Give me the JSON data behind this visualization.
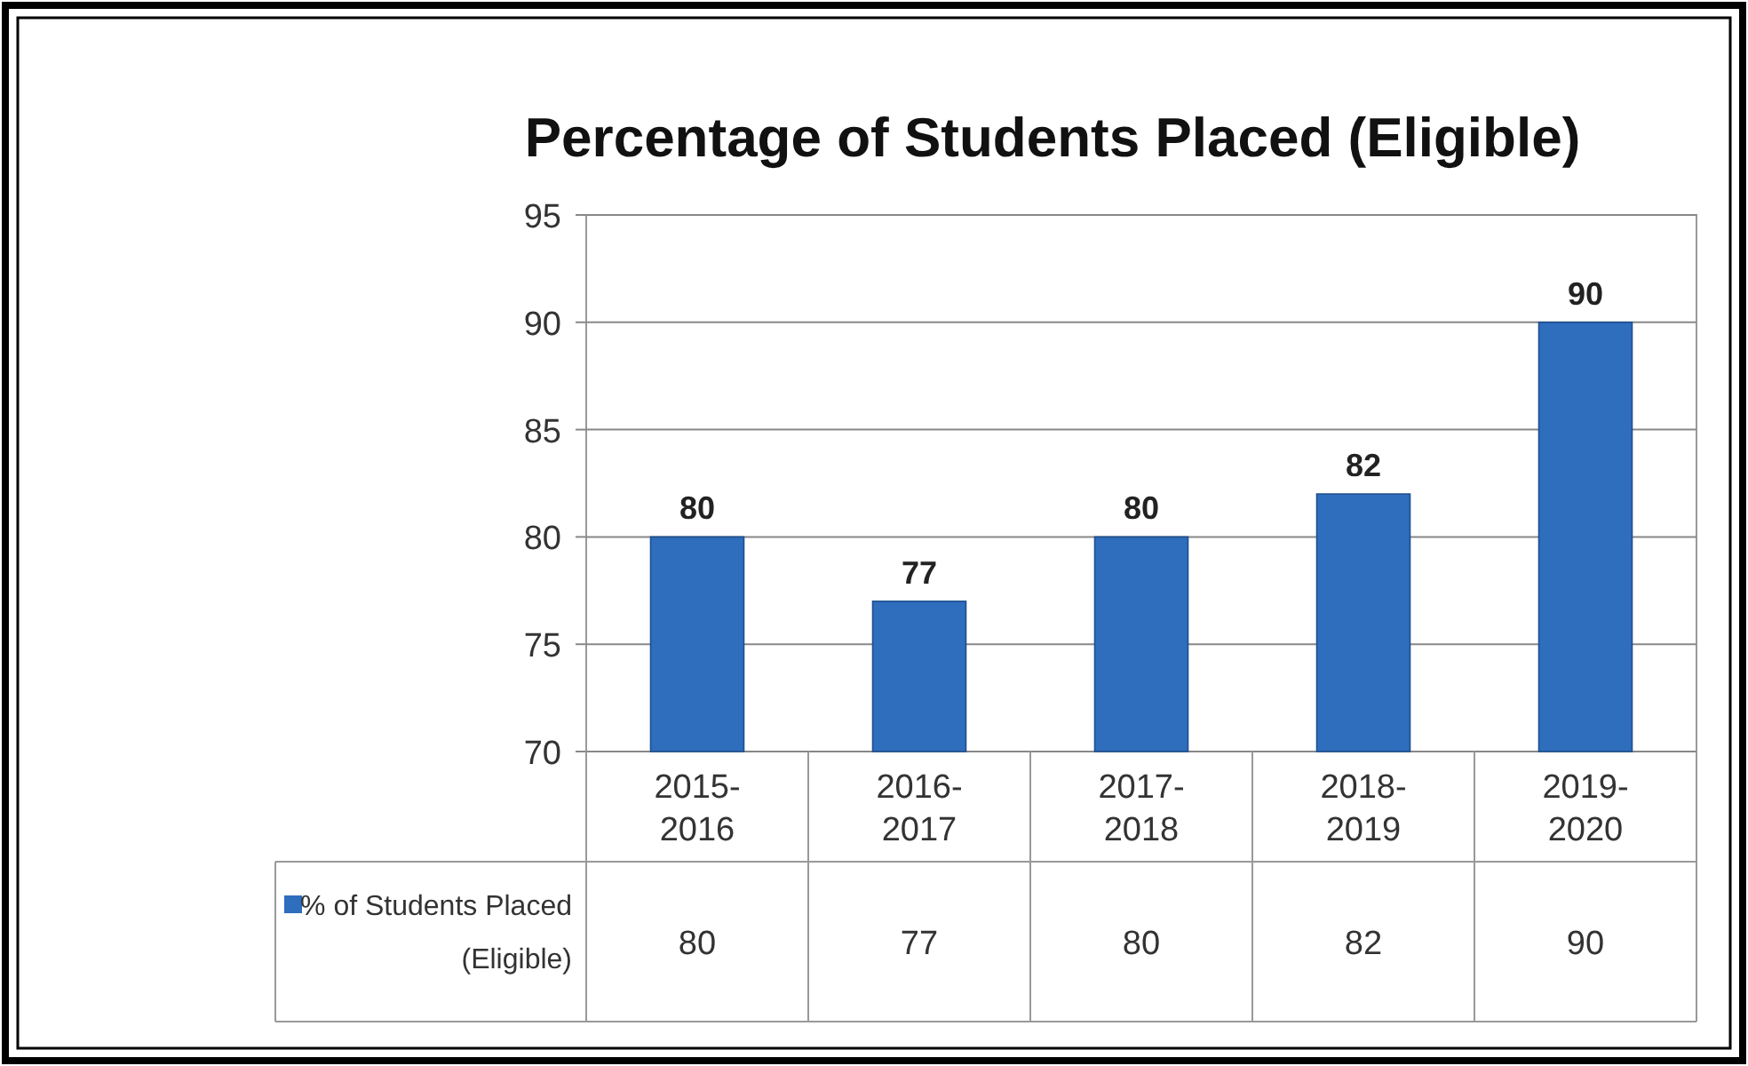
{
  "chart_data": {
    "type": "bar",
    "title": "Percentage of Students Placed (Eligible)",
    "categories": [
      "2015-2016",
      "2016-2017",
      "2017-2018",
      "2018-2019",
      "2019-2020"
    ],
    "series": [
      {
        "name": "% of Students Placed (Eligible)",
        "color": "#2f6dbd",
        "values": [
          80,
          77,
          80,
          82,
          90
        ]
      }
    ],
    "annotations": [
      "80",
      "77",
      "80",
      "82",
      "90"
    ],
    "ylim": [
      70,
      95
    ],
    "yticks": [
      70,
      75,
      80,
      85,
      90,
      95
    ],
    "grid": "y",
    "data_labels": true,
    "legend": "bottom left"
  }
}
